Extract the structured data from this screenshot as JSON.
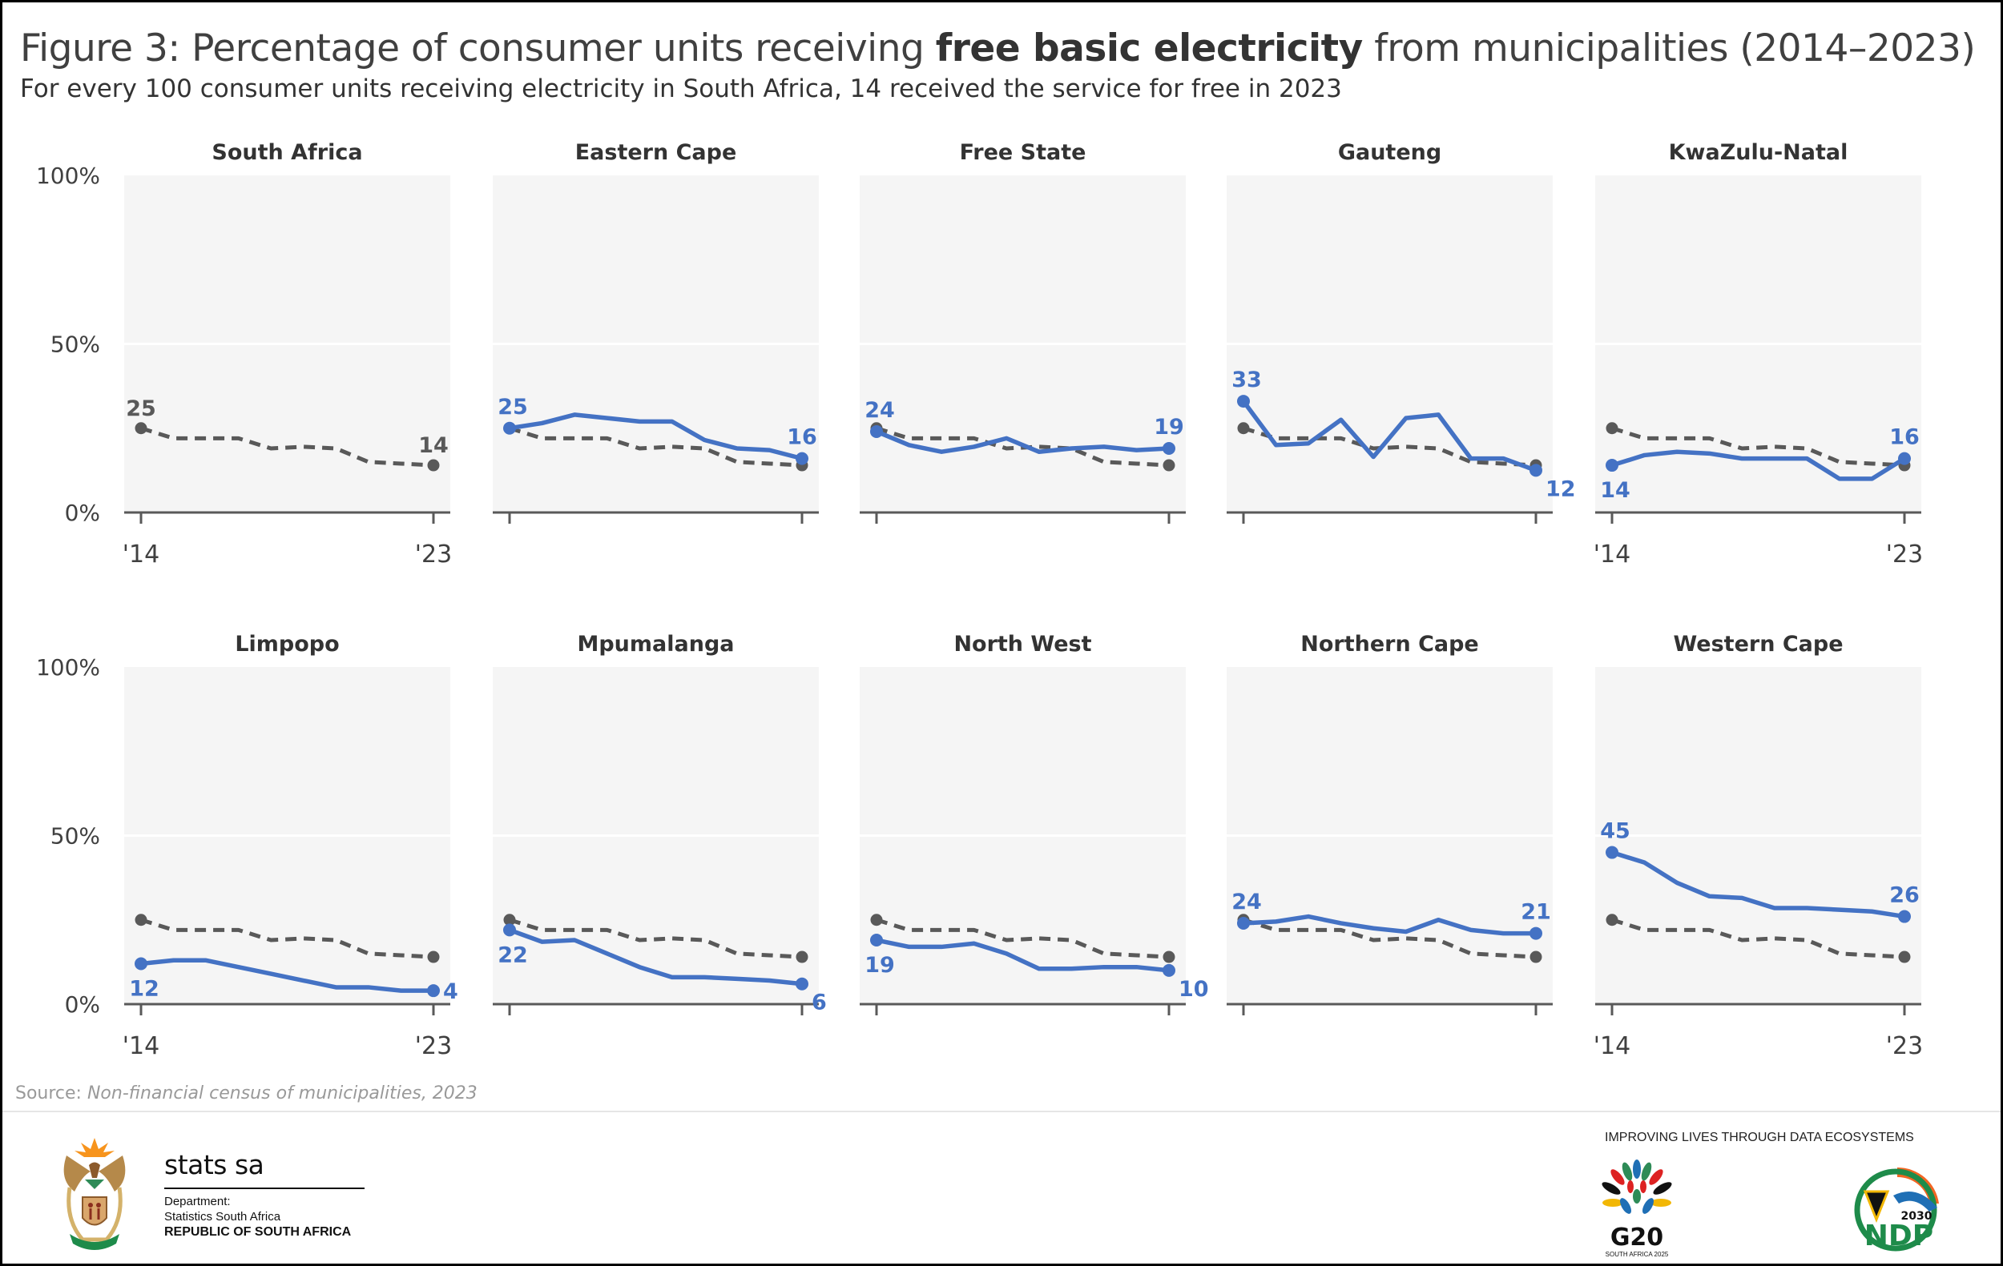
{
  "header": {
    "title_prefix": "Figure 3: Percentage of consumer units receiving ",
    "title_bold": "free basic electricity",
    "title_suffix": " from municipalities (2014–2023)",
    "subtitle": "For every 100 consumer units receiving electricity in South Africa, 14 received the service for free in 2023"
  },
  "colors": {
    "province": "#4472c4",
    "national": "#595959",
    "panel_bg": "#f5f5f5",
    "gridline": "#ffffff",
    "axis": "#595959"
  },
  "chart_data": {
    "type": "line",
    "layout": "small-multiples 2x5",
    "title": "Figure 3: Percentage of consumer units receiving free basic electricity from municipalities (2014–2023)",
    "subtitle": "For every 100 consumer units receiving electricity in South Africa, 14 received the service for free in 2023",
    "x": [
      2014,
      2015,
      2016,
      2017,
      2018,
      2019,
      2020,
      2021,
      2022,
      2023
    ],
    "x_tick_labels": [
      "'14",
      "'23"
    ],
    "y_tick_labels": [
      "0%",
      "50%",
      "100%"
    ],
    "ylim": [
      0,
      100
    ],
    "grid": true,
    "xlabel": "",
    "ylabel": "",
    "national_series": {
      "name": "South Africa",
      "style": "dashed",
      "values": [
        25,
        22,
        22,
        22,
        19,
        19.5,
        19,
        15,
        14.5,
        14
      ],
      "labels": {
        "first": "25",
        "last": "14"
      }
    },
    "panels": [
      {
        "name": "South Africa",
        "values": null,
        "labels": null,
        "show_y_axis": true,
        "show_x_labels": true
      },
      {
        "name": "Eastern Cape",
        "values": [
          25,
          26.5,
          29,
          28,
          27,
          27,
          21.5,
          19,
          18.5,
          16
        ],
        "labels": {
          "first": "25",
          "last": "16"
        },
        "label_pos": {
          "first": "above",
          "last": "above"
        }
      },
      {
        "name": "Free State",
        "values": [
          24,
          20,
          18,
          19.5,
          22,
          18,
          19,
          19.5,
          18.5,
          19
        ],
        "labels": {
          "first": "24",
          "last": "19"
        },
        "label_pos": {
          "first": "above",
          "last": "above"
        }
      },
      {
        "name": "Gauteng",
        "values": [
          33,
          20,
          20.5,
          27.5,
          16.5,
          28,
          29,
          16,
          16,
          12.5
        ],
        "labels": {
          "first": "33",
          "last": "12"
        },
        "label_pos": {
          "first": "above",
          "last": "below-right"
        }
      },
      {
        "name": "KwaZulu-Natal",
        "values": [
          14,
          17,
          18,
          17.5,
          16,
          16,
          16,
          10,
          10,
          16
        ],
        "labels": {
          "first": "14",
          "last": "16"
        },
        "label_pos": {
          "first": "below",
          "last": "above"
        },
        "show_x_labels": true
      },
      {
        "name": "Limpopo",
        "values": [
          12,
          13,
          13,
          11,
          9,
          7,
          5,
          5,
          4,
          4
        ],
        "labels": {
          "first": "12",
          "last": "4"
        },
        "label_pos": {
          "first": "below",
          "last": "right"
        },
        "show_y_axis": true,
        "show_x_labels": true
      },
      {
        "name": "Mpumalanga",
        "values": [
          22,
          18.5,
          19,
          15,
          11,
          8,
          8,
          7.5,
          7,
          6
        ],
        "labels": {
          "first": "22",
          "last": "6"
        },
        "label_pos": {
          "first": "below",
          "last": "below-right"
        }
      },
      {
        "name": "North West",
        "values": [
          19,
          17,
          17,
          18,
          15,
          10.5,
          10.5,
          11,
          11,
          10
        ],
        "labels": {
          "first": "19",
          "last": "10"
        },
        "label_pos": {
          "first": "below",
          "last": "below-right"
        }
      },
      {
        "name": "Northern Cape",
        "values": [
          24,
          24.5,
          26,
          24,
          22.5,
          21.5,
          25,
          22,
          21,
          21
        ],
        "labels": {
          "first": "24",
          "last": "21"
        },
        "label_pos": {
          "first": "above",
          "last": "above"
        }
      },
      {
        "name": "Western Cape",
        "values": [
          45,
          42,
          36,
          32,
          31.5,
          28.5,
          28.5,
          28,
          27.5,
          26
        ],
        "labels": {
          "first": "45",
          "last": "26"
        },
        "label_pos": {
          "first": "above",
          "last": "above"
        },
        "show_x_labels": true
      }
    ]
  },
  "footer": {
    "source_label": "Source: ",
    "source_text": "Non-financial census of municipalities, 2023",
    "org_name": "stats sa",
    "dept_line1": "Department:",
    "dept_line2": "Statistics South Africa",
    "dept_line3": "REPUBLIC OF SOUTH AFRICA",
    "tagline": "IMPROVING LIVES THROUGH DATA ECOSYSTEMS",
    "g20_text": "G20",
    "g20_sub": "SOUTH AFRICA 2025",
    "ndp_year": "2030",
    "ndp_text": "NDP"
  }
}
